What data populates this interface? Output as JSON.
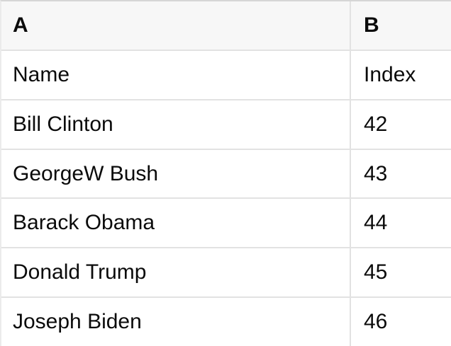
{
  "table": {
    "columns": [
      {
        "label": "A"
      },
      {
        "label": "B"
      }
    ],
    "rows": [
      {
        "a": "Name",
        "b": "Index"
      },
      {
        "a": "Bill Clinton",
        "b": "42"
      },
      {
        "a": "GeorgeW Bush",
        "b": "43"
      },
      {
        "a": "Barack Obama",
        "b": "44"
      },
      {
        "a": "Donald Trump",
        "b": "45"
      },
      {
        "a": "Joseph Biden",
        "b": "46"
      }
    ]
  },
  "colors": {
    "header_bg": "#f7f7f7",
    "grid_line": "#e2e2e2",
    "top_border": "#d6d6d6",
    "left_border": "#ebebeb",
    "text": "#0b0b0b"
  }
}
